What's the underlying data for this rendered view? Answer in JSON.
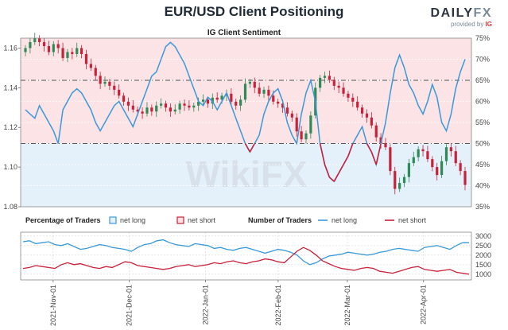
{
  "header": {
    "title": "EUR/USD Client Positioning",
    "brand_prefix": "DAILY",
    "brand_suffix": "FX",
    "brand_sub": "provided by",
    "brand_ig": "IG"
  },
  "watermark": "WikiFX",
  "colors": {
    "net_long": "#3a9ad9",
    "net_short": "#c8213a",
    "candle_up": "#2e8b57",
    "candle_down": "#c8213a",
    "bg_long": "#e4f1fb",
    "bg_short": "#fbe3e6"
  },
  "chart_data": [
    {
      "type": "candlestick",
      "title": "IG Client Sentiment",
      "left_axis": {
        "ylim": [
          1.08,
          1.165
        ],
        "ticks": [
          1.08,
          1.1,
          1.12,
          1.14,
          1.16
        ],
        "tick_labels": [
          "1.08",
          "1.10",
          "1.12",
          "1.14",
          "1.16"
        ]
      },
      "right_axis": {
        "ylim": [
          35,
          75
        ],
        "ticks": [
          35,
          40,
          45,
          50,
          55,
          60,
          65,
          70,
          75
        ],
        "tick_labels": [
          "35%",
          "40%",
          "45%",
          "50%",
          "55%",
          "60%",
          "65%",
          "70%",
          "75%"
        ]
      },
      "reference_lines": [
        {
          "axis": "right",
          "value": 50
        },
        {
          "axis": "right",
          "value": 65
        }
      ],
      "price_close": [
        1.16,
        1.163,
        1.165,
        1.163,
        1.161,
        1.158,
        1.162,
        1.16,
        1.155,
        1.158,
        1.157,
        1.16,
        1.157,
        1.152,
        1.15,
        1.146,
        1.142,
        1.143,
        1.141,
        1.139,
        1.136,
        1.133,
        1.131,
        1.129,
        1.128,
        1.127,
        1.13,
        1.128,
        1.131,
        1.132,
        1.13,
        1.128,
        1.129,
        1.132,
        1.131,
        1.13,
        1.131,
        1.133,
        1.134,
        1.132,
        1.135,
        1.134,
        1.136,
        1.137,
        1.133,
        1.131,
        1.134,
        1.142,
        1.143,
        1.14,
        1.137,
        1.139,
        1.136,
        1.133,
        1.132,
        1.13,
        1.127,
        1.125,
        1.118,
        1.114,
        1.117,
        1.126,
        1.14,
        1.145,
        1.146,
        1.144,
        1.141,
        1.14,
        1.137,
        1.135,
        1.133,
        1.13,
        1.127,
        1.125,
        1.121,
        1.115,
        1.112,
        1.11,
        1.098,
        1.089,
        1.092,
        1.095,
        1.102,
        1.105,
        1.109,
        1.108,
        1.104,
        1.1,
        1.096,
        1.103,
        1.11,
        1.108,
        1.102,
        1.098,
        1.091
      ],
      "net_long_pct": [
        58,
        57,
        56,
        59,
        57,
        55,
        53,
        50,
        58,
        60,
        62,
        63,
        62,
        60,
        58,
        55,
        53,
        55,
        57,
        59,
        60,
        58,
        56,
        54,
        57,
        60,
        63,
        66,
        67,
        70,
        73,
        74,
        73,
        71,
        69,
        66,
        63,
        60,
        59,
        61,
        60,
        58,
        60,
        62,
        59,
        56,
        53,
        50,
        48,
        50,
        52,
        57,
        60,
        62,
        63,
        60,
        55,
        52,
        50,
        57,
        62,
        65,
        60,
        50,
        45,
        42,
        41,
        43,
        45,
        47,
        50,
        52,
        54,
        50,
        48,
        45,
        50,
        55,
        62,
        68,
        71,
        68,
        64,
        62,
        59,
        57,
        60,
        64,
        61,
        55,
        53,
        57,
        63,
        67,
        70
      ],
      "x_ticks": [
        {
          "index": 8,
          "label": "2021-Nov-01"
        },
        {
          "index": 30,
          "label": "2021-Dec-01"
        },
        {
          "index": 52,
          "label": "2022-Jan-01"
        },
        {
          "index": 73,
          "label": "2022-Feb-01"
        },
        {
          "index": 93,
          "label": "2022-Mar-01"
        },
        {
          "index": 115,
          "label": "2022-Apr-01"
        }
      ]
    },
    {
      "type": "line",
      "title": "Number of Traders",
      "legend": [
        {
          "group": "Percentage of Traders",
          "items": [
            "net long",
            "net short"
          ]
        },
        {
          "group": "Number of Traders",
          "items": [
            "net long",
            "net short"
          ]
        }
      ],
      "ylim": [
        700,
        3200
      ],
      "ticks": [
        1000,
        1500,
        2000,
        2500,
        3000
      ],
      "tick_labels": [
        "1000",
        "1500",
        "2000",
        "2500",
        "3000"
      ],
      "series": [
        {
          "name": "net long",
          "values": [
            2700,
            2750,
            2600,
            2650,
            2700,
            2550,
            2500,
            2600,
            2450,
            2300,
            2350,
            2450,
            2550,
            2500,
            2400,
            2350,
            2300,
            2200,
            2400,
            2550,
            2600,
            2750,
            2800,
            2650,
            2550,
            2500,
            2450,
            2600,
            2550,
            2500,
            2350,
            2400,
            2300,
            2250,
            2350,
            2400,
            2300,
            2200,
            2100,
            2200,
            2300,
            2250,
            2150,
            2000,
            1700,
            1500,
            1600,
            1800,
            1950,
            2000,
            2050,
            2150,
            2100,
            2050,
            2000,
            2050,
            2150,
            2200,
            2300,
            2350,
            2300,
            2250,
            2200,
            2400,
            2450,
            2500,
            2400,
            2300,
            2500,
            2650,
            2650
          ]
        },
        {
          "name": "net short",
          "values": [
            1300,
            1350,
            1450,
            1400,
            1350,
            1300,
            1500,
            1600,
            1500,
            1550,
            1450,
            1350,
            1300,
            1400,
            1350,
            1500,
            1650,
            1600,
            1450,
            1400,
            1350,
            1300,
            1250,
            1300,
            1400,
            1450,
            1500,
            1400,
            1450,
            1500,
            1600,
            1550,
            1650,
            1700,
            1600,
            1550,
            1650,
            1700,
            1800,
            1750,
            1650,
            1600,
            1900,
            2200,
            2400,
            2250,
            2000,
            1700,
            1550,
            1400,
            1300,
            1250,
            1200,
            1300,
            1350,
            1300,
            1150,
            1100,
            1050,
            1150,
            1250,
            1350,
            1400,
            1250,
            1200,
            1150,
            1200,
            1250,
            1100,
            1050,
            1000
          ]
        }
      ]
    }
  ]
}
